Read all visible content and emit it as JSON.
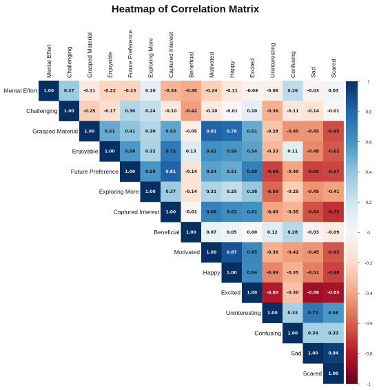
{
  "chart_data": {
    "type": "heatmap",
    "title": "Heatmap of Correlation Matrix",
    "labels": [
      "Mental Effort",
      "Challenging",
      "Grasped Material",
      "Enjoyable",
      "Future Preference",
      "Exploring More",
      "Captured Interest",
      "Beneficial",
      "Motivated",
      "Happy",
      "Excited",
      "Uninteresting",
      "Confusing",
      "Sad",
      "Scared"
    ],
    "matrix": [
      [
        1.0,
        0.37,
        -0.11,
        -0.22,
        -0.23,
        0.1,
        -0.34,
        -0.38,
        -0.24,
        -0.11,
        -0.04,
        -0.06,
        0.26,
        -0.03,
        0.03
      ],
      [
        null,
        1.0,
        -0.25,
        -0.17,
        0.3,
        0.24,
        -0.1,
        -0.42,
        -0.1,
        -0.01,
        0.1,
        -0.36,
        -0.11,
        -0.14,
        -0.01
      ],
      [
        null,
        null,
        1.0,
        0.51,
        0.41,
        0.3,
        0.53,
        -0.05,
        0.81,
        0.78,
        0.51,
        -0.28,
        -0.45,
        -0.45,
        -0.65
      ],
      [
        null,
        null,
        null,
        1.0,
        0.58,
        0.32,
        0.72,
        0.13,
        0.61,
        0.59,
        0.54,
        -0.33,
        0.11,
        -0.48,
        -0.62
      ],
      [
        null,
        null,
        null,
        null,
        1.0,
        0.59,
        0.81,
        -0.14,
        0.54,
        0.51,
        0.69,
        -0.68,
        -0.4,
        -0.68,
        -0.67
      ],
      [
        null,
        null,
        null,
        null,
        null,
        1.0,
        0.37,
        -0.14,
        0.31,
        0.25,
        0.38,
        -0.58,
        -0.25,
        -0.45,
        -0.41
      ],
      [
        null,
        null,
        null,
        null,
        null,
        null,
        1.0,
        -0.01,
        0.68,
        0.63,
        0.61,
        -0.4,
        -0.35,
        -0.64,
        -0.73
      ],
      [
        null,
        null,
        null,
        null,
        null,
        null,
        null,
        1.0,
        0.07,
        0.05,
        0.0,
        0.12,
        0.28,
        -0.03,
        -0.09
      ],
      [
        null,
        null,
        null,
        null,
        null,
        null,
        null,
        null,
        1.0,
        0.87,
        0.65,
        -0.36,
        -0.42,
        -0.45,
        -0.63
      ],
      [
        null,
        null,
        null,
        null,
        null,
        null,
        null,
        null,
        null,
        1.0,
        0.64,
        -0.49,
        -0.35,
        -0.51,
        -0.68
      ],
      [
        null,
        null,
        null,
        null,
        null,
        null,
        null,
        null,
        null,
        null,
        1.0,
        -0.8,
        -0.3,
        -0.86,
        -0.83
      ],
      [
        null,
        null,
        null,
        null,
        null,
        null,
        null,
        null,
        null,
        null,
        null,
        1.0,
        0.33,
        0.72,
        0.58
      ],
      [
        null,
        null,
        null,
        null,
        null,
        null,
        null,
        null,
        null,
        null,
        null,
        null,
        1.0,
        0.34,
        0.33
      ],
      [
        null,
        null,
        null,
        null,
        null,
        null,
        null,
        null,
        null,
        null,
        null,
        null,
        null,
        1.0,
        0.94
      ],
      [
        null,
        null,
        null,
        null,
        null,
        null,
        null,
        null,
        null,
        null,
        null,
        null,
        null,
        null,
        1.0
      ]
    ],
    "value_range": [
      -1,
      1
    ],
    "colorbar_ticks": [
      1,
      0.8,
      0.6,
      0.4,
      0.2,
      0,
      -0.2,
      -0.4,
      -0.6,
      -0.8,
      -1
    ],
    "colormap": "RdBu",
    "grid": false,
    "legend": "colorbar right"
  }
}
